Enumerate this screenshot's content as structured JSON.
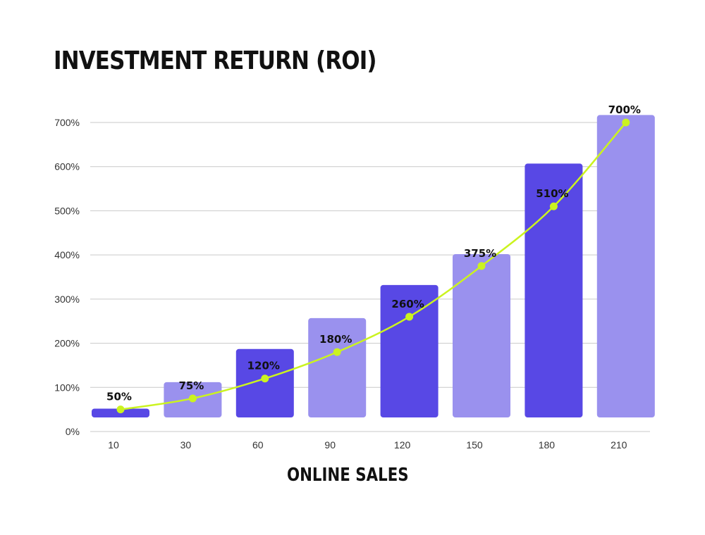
{
  "chart_data": {
    "type": "bar",
    "title": "INVESTMENT RETURN (ROI)",
    "xlabel": "ONLINE SALES",
    "ylabel": "",
    "categories": [
      "10",
      "30",
      "60",
      "90",
      "120",
      "150",
      "180",
      "210"
    ],
    "y_ticks": [
      "0%",
      "100%",
      "200%",
      "300%",
      "400%",
      "500%",
      "600%",
      "700%"
    ],
    "ylim": [
      0,
      700
    ],
    "grid": true,
    "bars": {
      "values": [
        20,
        80,
        155,
        225,
        300,
        370,
        575,
        685
      ],
      "colors": [
        "#5848E5",
        "#9A91EE",
        "#5848E5",
        "#9A91EE",
        "#5848E5",
        "#9A91EE",
        "#5848E5",
        "#9A91EE"
      ]
    },
    "line": {
      "values": [
        50,
        75,
        120,
        180,
        260,
        375,
        510,
        700
      ],
      "labels": [
        "50%",
        "75%",
        "120%",
        "180%",
        "260%",
        "375%",
        "510%",
        "700%"
      ],
      "color": "#CBF31F"
    }
  }
}
